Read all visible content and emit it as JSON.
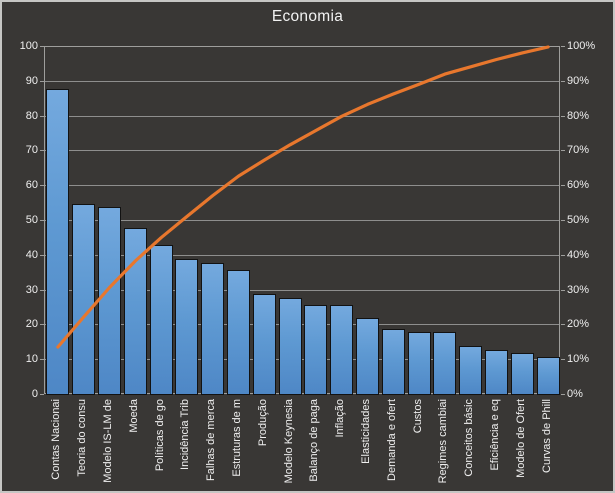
{
  "chart_data": {
    "type": "bar",
    "subtype": "pareto",
    "title": "Economia",
    "legend": "none",
    "grid": true,
    "categories": [
      "Contas Nacionai",
      "Teoria do consu",
      "Modelo IS-LM de",
      "Moeda",
      "Políticas de go",
      "Incidência Trib",
      "Falhas de merca",
      "Estruturas de m",
      "Produção",
      "Modelo Keynesia",
      "Balanço de paga",
      "Inflação",
      "Elasticidades",
      "Demanda e ofert",
      "Custos",
      "Regimes cambiai",
      "Conceitos básic",
      "Eficiência e eq",
      "Modelo de Ofert",
      "Curvas de Phill"
    ],
    "values": [
      88,
      55,
      54,
      48,
      43,
      39,
      38,
      36,
      29,
      28,
      26,
      26,
      22,
      19,
      18,
      18,
      14,
      13,
      12,
      11
    ],
    "line_series": {
      "type": "line",
      "cumulative_pct": [
        13.8,
        22.4,
        30.9,
        38.5,
        45.2,
        51.3,
        57.3,
        62.9,
        67.5,
        71.9,
        76.0,
        80.1,
        83.5,
        86.5,
        89.3,
        92.2,
        94.3,
        96.4,
        98.3,
        100.0
      ]
    },
    "y_axis_left": {
      "min": 0,
      "max": 100,
      "step": 10,
      "tick_labels": [
        "0",
        "10",
        "20",
        "30",
        "40",
        "50",
        "60",
        "70",
        "80",
        "90",
        "100"
      ]
    },
    "y_axis_right": {
      "min": 0,
      "max": 100,
      "step": 10,
      "tick_labels": [
        "0%",
        "10%",
        "20%",
        "30%",
        "40%",
        "50%",
        "60%",
        "70%",
        "80%",
        "90%",
        "100%"
      ]
    },
    "colors": {
      "background": "#393735",
      "frame_border": "#c6c6c4",
      "gridline": "#9e9e9c",
      "text": "#efefef",
      "bar_fill_top": "#74a9de",
      "bar_fill_bottom": "#4e87c6",
      "bar_border": "#121212",
      "line": "#e8772d"
    }
  }
}
